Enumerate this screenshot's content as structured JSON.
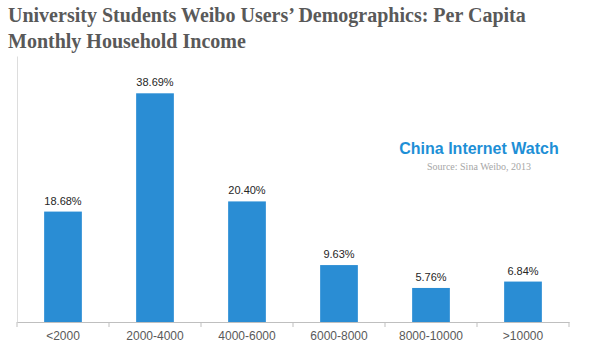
{
  "chart_data": {
    "type": "bar",
    "title": "University Students Weibo Users’ Demographics: Per Capita Monthly Household Income",
    "annotations": [
      "China Internet Watch",
      "Source: Sina Weibo,  2013"
    ],
    "categories": [
      "<2000",
      "2000-4000",
      "4000-6000",
      "6000-8000",
      "8000-10000",
      ">10000"
    ],
    "values": [
      18.68,
      38.69,
      20.4,
      9.63,
      5.76,
      6.84
    ],
    "value_labels": [
      "18.68%",
      "38.69%",
      "20.40%",
      "9.63%",
      "5.76%",
      "6.84%"
    ],
    "color": "#2a8dd4",
    "ylim": [
      0,
      45
    ],
    "data_labels": true,
    "tick_labels": "x",
    "grid": false
  }
}
